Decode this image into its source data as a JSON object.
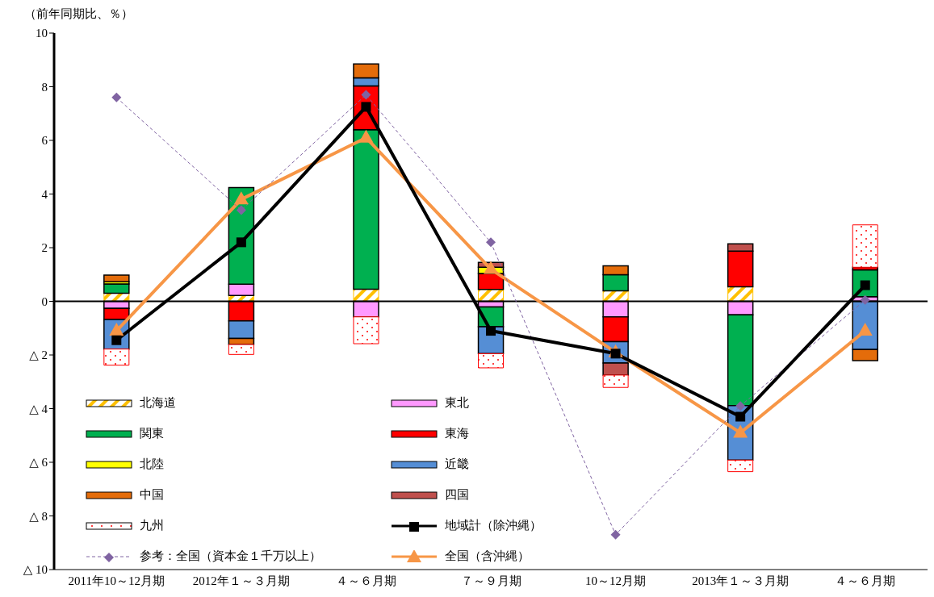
{
  "chart_data": {
    "type": "bar",
    "stacked": true,
    "ylabel": "（前年同期比、％）",
    "categories": [
      "2011年10～12月期",
      "2012年１～３月期",
      "４～６月期",
      "７～９月期",
      "10～12月期",
      "2013年１～３月期",
      "４～６月期"
    ],
    "ylim": [
      -10,
      10
    ],
    "yticks": [
      {
        "value": -10,
        "label": "△ 10"
      },
      {
        "value": -8,
        "label": "△ 8"
      },
      {
        "value": -6,
        "label": "△ 6"
      },
      {
        "value": -4,
        "label": "△ 4"
      },
      {
        "value": -2,
        "label": "△ 2"
      },
      0,
      2,
      4,
      6,
      8,
      10
    ],
    "legend": "bottom left",
    "series": [
      {
        "name": "北海道",
        "type": "bar",
        "color": "#ffc000",
        "values": [
          0.3,
          0.22,
          0.45,
          0.44,
          0.39,
          0.54,
          0
        ]
      },
      {
        "name": "東北",
        "type": "bar",
        "color": "#ff99ff",
        "values": [
          -0.26,
          0.42,
          -0.58,
          -0.21,
          -0.58,
          -0.5,
          0.17
        ]
      },
      {
        "name": "関東",
        "type": "bar",
        "color": "#00b050",
        "values": [
          0.35,
          3.6,
          5.95,
          -0.74,
          0.6,
          -3.39,
          1.0
        ]
      },
      {
        "name": "東海",
        "type": "bar",
        "color": "#ff0000",
        "values": [
          -0.42,
          -0.73,
          1.63,
          0.6,
          -0.92,
          1.33,
          0.1
        ]
      },
      {
        "name": "北陸",
        "type": "bar",
        "color": "#ffff00",
        "values": [
          0.08,
          0,
          0,
          0.23,
          0,
          0,
          0
        ]
      },
      {
        "name": "近畿",
        "type": "bar",
        "color": "#558ed5",
        "values": [
          -1.1,
          -0.65,
          0.3,
          -1.0,
          -0.8,
          -2.03,
          -1.8
        ]
      },
      {
        "name": "中国",
        "type": "bar",
        "color": "#e46c0a",
        "values": [
          0.25,
          -0.23,
          0.52,
          0,
          0.33,
          0,
          -0.41
        ]
      },
      {
        "name": "四国",
        "type": "bar",
        "color": "#c0504d",
        "values": [
          0,
          0,
          0,
          0.18,
          -0.45,
          0.27,
          0
        ]
      },
      {
        "name": "九州",
        "type": "bar",
        "color": "#ff0000",
        "values": [
          -0.6,
          -0.37,
          -1.0,
          -0.53,
          -0.46,
          -0.43,
          1.58
        ]
      },
      {
        "name": "地域計（除沖縄）",
        "type": "line",
        "color": "#000000",
        "marker": "square",
        "line_style": "solid",
        "values": [
          -1.45,
          2.2,
          7.25,
          -1.1,
          -1.95,
          -4.3,
          0.6
        ]
      },
      {
        "name": "参考：全国（資本金１千万以上）",
        "type": "line",
        "color": "#8064a2",
        "marker": "diamond",
        "line_style": "dashed",
        "values": [
          7.6,
          3.4,
          7.7,
          2.2,
          -8.7,
          -3.9,
          0.05
        ]
      },
      {
        "name": "全国（含沖縄）",
        "type": "line",
        "color": "#f79646",
        "marker": "triangle",
        "line_style": "solid",
        "values": [
          -1.1,
          3.8,
          6.1,
          1.2,
          -1.9,
          -4.9,
          -1.1
        ]
      }
    ]
  }
}
